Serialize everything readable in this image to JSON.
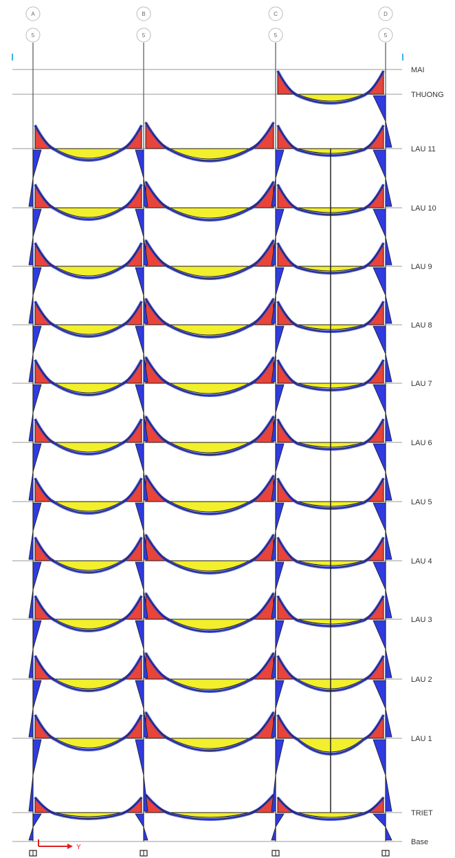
{
  "colors": {
    "background": "#ffffff",
    "frame_line": "#9a9a9a",
    "column_line": "#555555",
    "positive_moment": "#f2ef2c",
    "negative_moment": "#e8443a",
    "shear_band": "#2e3ee0",
    "column_moment": "#2f3be0",
    "outline": "#1a1a1a",
    "axis_arrow": "#e02020",
    "level_tick": "#3fb0e0",
    "bubble": "#bbbbbb"
  },
  "grid_lines": [
    {
      "top": "A",
      "bottom": "5"
    },
    {
      "top": "B",
      "bottom": "5"
    },
    {
      "top": "C",
      "bottom": "5"
    },
    {
      "top": "D",
      "bottom": "5"
    }
  ],
  "stories": [
    {
      "label": "MAI"
    },
    {
      "label": "THUONG"
    },
    {
      "label": "LAU 11"
    },
    {
      "label": "LAU 10"
    },
    {
      "label": "LAU 9"
    },
    {
      "label": "LAU 8"
    },
    {
      "label": "LAU 7"
    },
    {
      "label": "LAU 6"
    },
    {
      "label": "LAU 5"
    },
    {
      "label": "LAU 4"
    },
    {
      "label": "LAU 3"
    },
    {
      "label": "LAU 2"
    },
    {
      "label": "LAU 1"
    },
    {
      "label": "TRIET"
    },
    {
      "label": "Base"
    }
  ],
  "axis_label": "Y"
}
